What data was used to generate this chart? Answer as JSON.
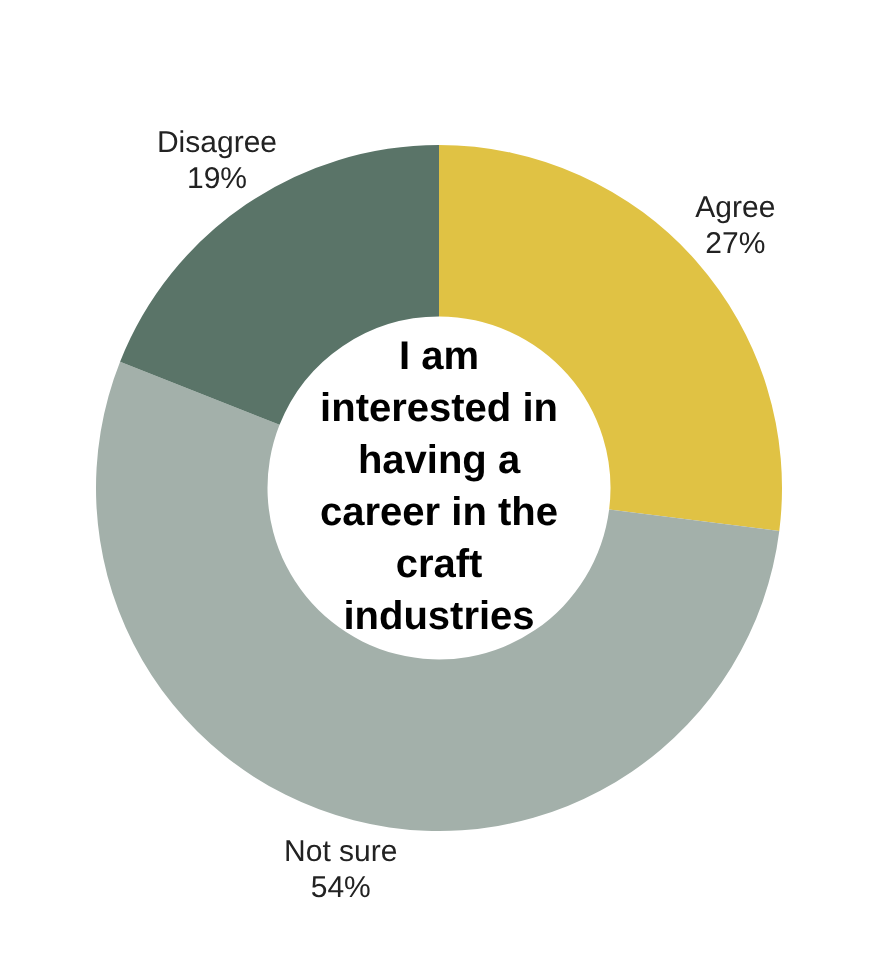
{
  "chart_data": {
    "type": "donut",
    "title": "I am interested in having a career in the craft industries",
    "categories": [
      "Agree",
      "Not sure",
      "Disagree"
    ],
    "values": [
      27,
      54,
      19
    ],
    "value_labels": [
      "27%",
      "54%",
      "19%"
    ],
    "colors": [
      "#e0c244",
      "#a3b0aa",
      "#5a7468"
    ],
    "legend": false
  }
}
